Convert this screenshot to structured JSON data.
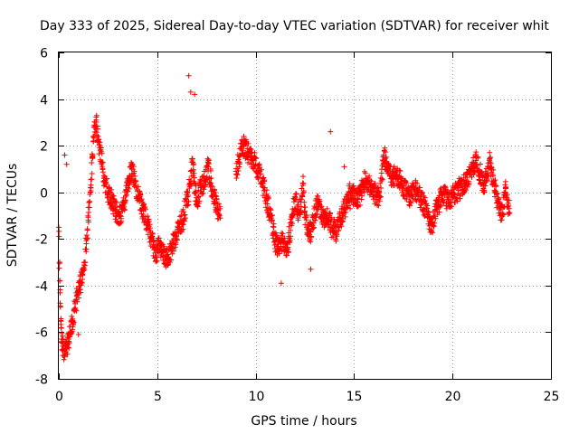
{
  "chart_data": {
    "type": "scatter",
    "title": "Day 333 of 2025, Sidereal Day-to-day VTEC variation (SDTVAR) for receiver whit",
    "xlabel": "GPS time / hours",
    "ylabel": "SDTVAR / TECUs",
    "xlim": [
      0,
      25
    ],
    "ylim": [
      -8,
      6
    ],
    "xticks": [
      0,
      5,
      10,
      15,
      20,
      25
    ],
    "yticks": [
      -8,
      -6,
      -4,
      -2,
      0,
      2,
      4,
      6
    ],
    "xtick_labels": [
      "0",
      "5",
      "10",
      "15",
      "20",
      "25"
    ],
    "ytick_labels": [
      "-8",
      "-6",
      "-4",
      "-2",
      "0",
      "2",
      "4",
      "6"
    ],
    "grid": true,
    "marker": "plus",
    "series": [
      {
        "name": "SDTVAR",
        "color": "#ff0000",
        "trace": [
          [
            0.0,
            -1.5
          ],
          [
            0.05,
            -3.8
          ],
          [
            0.1,
            -5.5
          ],
          [
            0.15,
            -6.4
          ],
          [
            0.2,
            -6.6
          ],
          [
            0.3,
            -6.8
          ],
          [
            0.4,
            -6.6
          ],
          [
            0.5,
            -6.3
          ],
          [
            0.6,
            -6.0
          ],
          [
            0.7,
            -5.5
          ],
          [
            0.8,
            -5.0
          ],
          [
            0.9,
            -4.6
          ],
          [
            1.0,
            -4.3
          ],
          [
            1.1,
            -3.9
          ],
          [
            1.2,
            -3.5
          ],
          [
            1.3,
            -3.0
          ],
          [
            1.4,
            -2.2
          ],
          [
            1.5,
            -1.2
          ],
          [
            1.6,
            0.0
          ],
          [
            1.7,
            1.5
          ],
          [
            1.8,
            2.8
          ],
          [
            1.9,
            3.1
          ],
          [
            2.0,
            2.4
          ],
          [
            2.1,
            1.8
          ],
          [
            2.2,
            1.3
          ],
          [
            2.3,
            0.6
          ],
          [
            2.5,
            0.0
          ],
          [
            2.7,
            -0.4
          ],
          [
            2.9,
            -0.8
          ],
          [
            3.1,
            -1.0
          ],
          [
            3.3,
            -0.6
          ],
          [
            3.5,
            0.2
          ],
          [
            3.7,
            1.0
          ],
          [
            3.9,
            0.3
          ],
          [
            4.1,
            -0.4
          ],
          [
            4.3,
            -0.8
          ],
          [
            4.5,
            -1.4
          ],
          [
            4.7,
            -2.0
          ],
          [
            4.9,
            -2.6
          ],
          [
            5.0,
            -2.5
          ],
          [
            5.1,
            -2.2
          ],
          [
            5.3,
            -2.6
          ],
          [
            5.5,
            -2.9
          ],
          [
            5.7,
            -2.5
          ],
          [
            5.9,
            -2.0
          ],
          [
            6.1,
            -1.6
          ],
          [
            6.3,
            -1.2
          ],
          [
            6.5,
            -0.4
          ],
          [
            6.7,
            0.5
          ],
          [
            6.8,
            1.3
          ],
          [
            6.9,
            0.4
          ],
          [
            7.0,
            -0.5
          ],
          [
            7.2,
            0.2
          ],
          [
            7.4,
            0.5
          ],
          [
            7.6,
            1.1
          ],
          [
            7.8,
            0.1
          ],
          [
            8.0,
            -0.5
          ],
          [
            8.2,
            -1.1
          ],
          [
            9.0,
            0.9
          ],
          [
            9.2,
            1.6
          ],
          [
            9.4,
            2.0
          ],
          [
            9.6,
            1.7
          ],
          [
            9.8,
            1.5
          ],
          [
            10.0,
            1.2
          ],
          [
            10.2,
            0.9
          ],
          [
            10.4,
            0.2
          ],
          [
            10.6,
            -0.5
          ],
          [
            10.8,
            -1.1
          ],
          [
            11.0,
            -2.1
          ],
          [
            11.2,
            -2.4
          ],
          [
            11.4,
            -2.0
          ],
          [
            11.6,
            -2.5
          ],
          [
            12.0,
            -0.3
          ],
          [
            12.2,
            -0.9
          ],
          [
            12.4,
            0.3
          ],
          [
            12.5,
            -0.8
          ],
          [
            12.6,
            -1.5
          ],
          [
            12.8,
            -1.7
          ],
          [
            13.1,
            -0.5
          ],
          [
            13.4,
            -1.0
          ],
          [
            13.7,
            -1.2
          ],
          [
            13.9,
            -1.5
          ],
          [
            14.1,
            -1.7
          ],
          [
            14.4,
            -1.0
          ],
          [
            14.8,
            0.0
          ],
          [
            15.2,
            -0.3
          ],
          [
            15.6,
            0.6
          ],
          [
            16.0,
            0.0
          ],
          [
            16.3,
            -0.2
          ],
          [
            16.5,
            1.6
          ],
          [
            16.7,
            1.0
          ],
          [
            16.9,
            0.7
          ],
          [
            17.2,
            0.7
          ],
          [
            17.5,
            0.3
          ],
          [
            17.8,
            -0.2
          ],
          [
            18.1,
            0.1
          ],
          [
            18.4,
            -0.3
          ],
          [
            18.7,
            -0.8
          ],
          [
            18.9,
            -1.6
          ],
          [
            19.2,
            -0.6
          ],
          [
            19.5,
            -0.1
          ],
          [
            19.8,
            -0.3
          ],
          [
            20.1,
            -0.1
          ],
          [
            20.4,
            0.2
          ],
          [
            20.7,
            0.4
          ],
          [
            20.9,
            0.8
          ],
          [
            21.2,
            1.5
          ],
          [
            21.4,
            0.8
          ],
          [
            21.6,
            0.3
          ],
          [
            21.9,
            1.3
          ],
          [
            22.1,
            0.4
          ],
          [
            22.3,
            -0.4
          ],
          [
            22.5,
            -1.0
          ],
          [
            22.7,
            0.2
          ],
          [
            22.9,
            -0.9
          ]
        ],
        "isolated_points": [
          [
            6.6,
            5.0
          ],
          [
            6.9,
            4.2
          ],
          [
            6.7,
            4.3
          ],
          [
            11.3,
            -3.9
          ],
          [
            12.8,
            -3.3
          ],
          [
            13.8,
            2.6
          ],
          [
            14.5,
            1.1
          ],
          [
            14.8,
            -0.7
          ],
          [
            1.0,
            -6.1
          ],
          [
            0.3,
            1.6
          ],
          [
            0.4,
            1.2
          ]
        ]
      }
    ]
  }
}
